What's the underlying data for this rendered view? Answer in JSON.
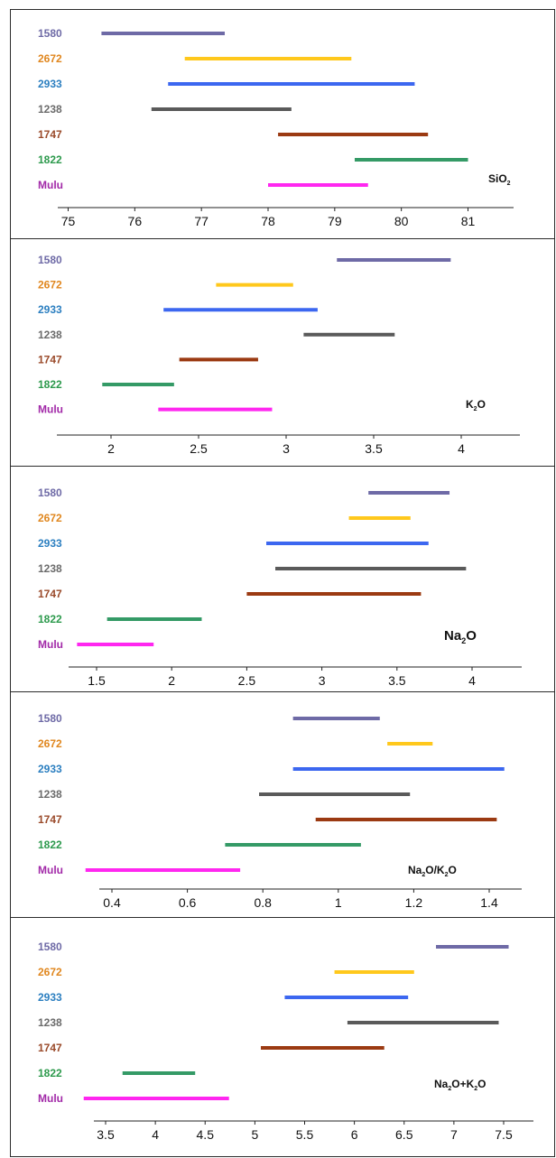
{
  "chart_data": [
    {
      "type": "range-bar",
      "title": "SiO2",
      "title_parts": [
        [
          "SiO",
          "normal"
        ],
        [
          "2",
          "sub"
        ]
      ],
      "categories": [
        "1580",
        "2672",
        "2933",
        "1238",
        "1747",
        "1822",
        "Mulu"
      ],
      "ranges": [
        [
          75.5,
          77.35
        ],
        [
          76.75,
          79.25
        ],
        [
          76.5,
          80.2
        ],
        [
          76.25,
          78.35
        ],
        [
          78.15,
          80.4
        ],
        [
          79.3,
          81.0
        ],
        [
          78.0,
          79.5
        ]
      ],
      "ticks": [
        75,
        76,
        77,
        78,
        79,
        80,
        81
      ],
      "tick_labels": [
        "75",
        "76",
        "77",
        "78",
        "79",
        "80",
        "81"
      ],
      "xlim": [
        75,
        81
      ]
    },
    {
      "type": "range-bar",
      "title": "K2O",
      "title_parts": [
        [
          "K",
          "normal"
        ],
        [
          "2",
          "sub"
        ],
        [
          "O",
          "normal"
        ]
      ],
      "categories": [
        "1580",
        "2672",
        "2933",
        "1238",
        "1747",
        "1822",
        "Mulu"
      ],
      "ranges": [
        [
          3.29,
          3.94
        ],
        [
          2.6,
          3.04
        ],
        [
          2.3,
          3.18
        ],
        [
          3.1,
          3.62
        ],
        [
          2.39,
          2.84
        ],
        [
          1.95,
          2.36
        ],
        [
          2.27,
          2.92
        ]
      ],
      "ticks": [
        2,
        2.5,
        3,
        3.5,
        4
      ],
      "tick_labels": [
        "2",
        "2.5",
        "3",
        "3.5",
        "4"
      ],
      "xlim": [
        2,
        4
      ]
    },
    {
      "type": "range-bar",
      "title": "Na2O",
      "title_parts": [
        [
          "Na",
          "normal"
        ],
        [
          "2",
          "sub"
        ],
        [
          "O",
          "normal"
        ]
      ],
      "categories": [
        "1580",
        "2672",
        "2933",
        "1238",
        "1747",
        "1822",
        "Mulu"
      ],
      "ranges": [
        [
          3.31,
          3.85
        ],
        [
          3.18,
          3.59
        ],
        [
          2.63,
          3.71
        ],
        [
          2.69,
          3.96
        ],
        [
          2.5,
          3.66
        ],
        [
          1.57,
          2.2
        ],
        [
          1.37,
          1.88
        ]
      ],
      "ticks": [
        1.5,
        2,
        2.5,
        3,
        3.5,
        4
      ],
      "tick_labels": [
        "1.5",
        "2",
        "2.5",
        "3",
        "3.5",
        "4"
      ],
      "xlim": [
        1.5,
        4
      ]
    },
    {
      "type": "range-bar",
      "title": "Na2O/K2O",
      "title_parts": [
        [
          "Na",
          "normal"
        ],
        [
          "2",
          "sub"
        ],
        [
          "O/K",
          "normal"
        ],
        [
          "2",
          "sub"
        ],
        [
          "O",
          "normal"
        ]
      ],
      "categories": [
        "1580",
        "2672",
        "2933",
        "1238",
        "1747",
        "1822",
        "Mulu"
      ],
      "ranges": [
        [
          0.88,
          1.11
        ],
        [
          1.13,
          1.25
        ],
        [
          0.88,
          1.44
        ],
        [
          0.79,
          1.19
        ],
        [
          0.94,
          1.42
        ],
        [
          0.7,
          1.06
        ],
        [
          0.33,
          0.74
        ]
      ],
      "ticks": [
        0.4,
        0.6,
        0.8,
        1,
        1.2,
        1.4
      ],
      "tick_labels": [
        "0.4",
        "0.6",
        "0.8",
        "1",
        "1.2",
        "1.4"
      ],
      "xlim": [
        0.4,
        1.4
      ]
    },
    {
      "type": "range-bar",
      "title": "Na2O+K2O",
      "title_parts": [
        [
          "Na",
          "normal"
        ],
        [
          "2",
          "sub"
        ],
        [
          "O+K",
          "normal"
        ],
        [
          "2",
          "sub"
        ],
        [
          "O",
          "normal"
        ]
      ],
      "categories": [
        "1580",
        "2672",
        "2933",
        "1238",
        "1747",
        "1822",
        "Mulu"
      ],
      "ranges": [
        [
          6.82,
          7.55
        ],
        [
          5.8,
          6.6
        ],
        [
          5.3,
          6.54
        ],
        [
          5.93,
          7.45
        ],
        [
          5.06,
          6.3
        ],
        [
          3.67,
          4.4
        ],
        [
          3.28,
          4.74
        ]
      ],
      "ticks": [
        3.5,
        4,
        4.5,
        5,
        5.5,
        6,
        6.5,
        7,
        7.5
      ],
      "tick_labels": [
        "3.5",
        "4",
        "4.5",
        "5",
        "5.5",
        "6",
        "6.5",
        "7",
        "7.5"
      ],
      "xlim": [
        3.5,
        7.5
      ]
    }
  ],
  "colors": {
    "categories": {
      "1580": "#6e6aa6",
      "2672": "#e0871f",
      "2933": "#2c7fc0",
      "1238": "#6b6b6b",
      "1747": "#9a4a2a",
      "1822": "#2d9a4d",
      "Mulu": "#a22aa8"
    },
    "bars": {
      "1580": "#6e6aa6",
      "2672": "#ffc81c",
      "2933": "#3c67f0",
      "1238": "#5a5a5a",
      "1747": "#9b3a12",
      "1822": "#349a66",
      "Mulu": "#ff27f0"
    }
  }
}
